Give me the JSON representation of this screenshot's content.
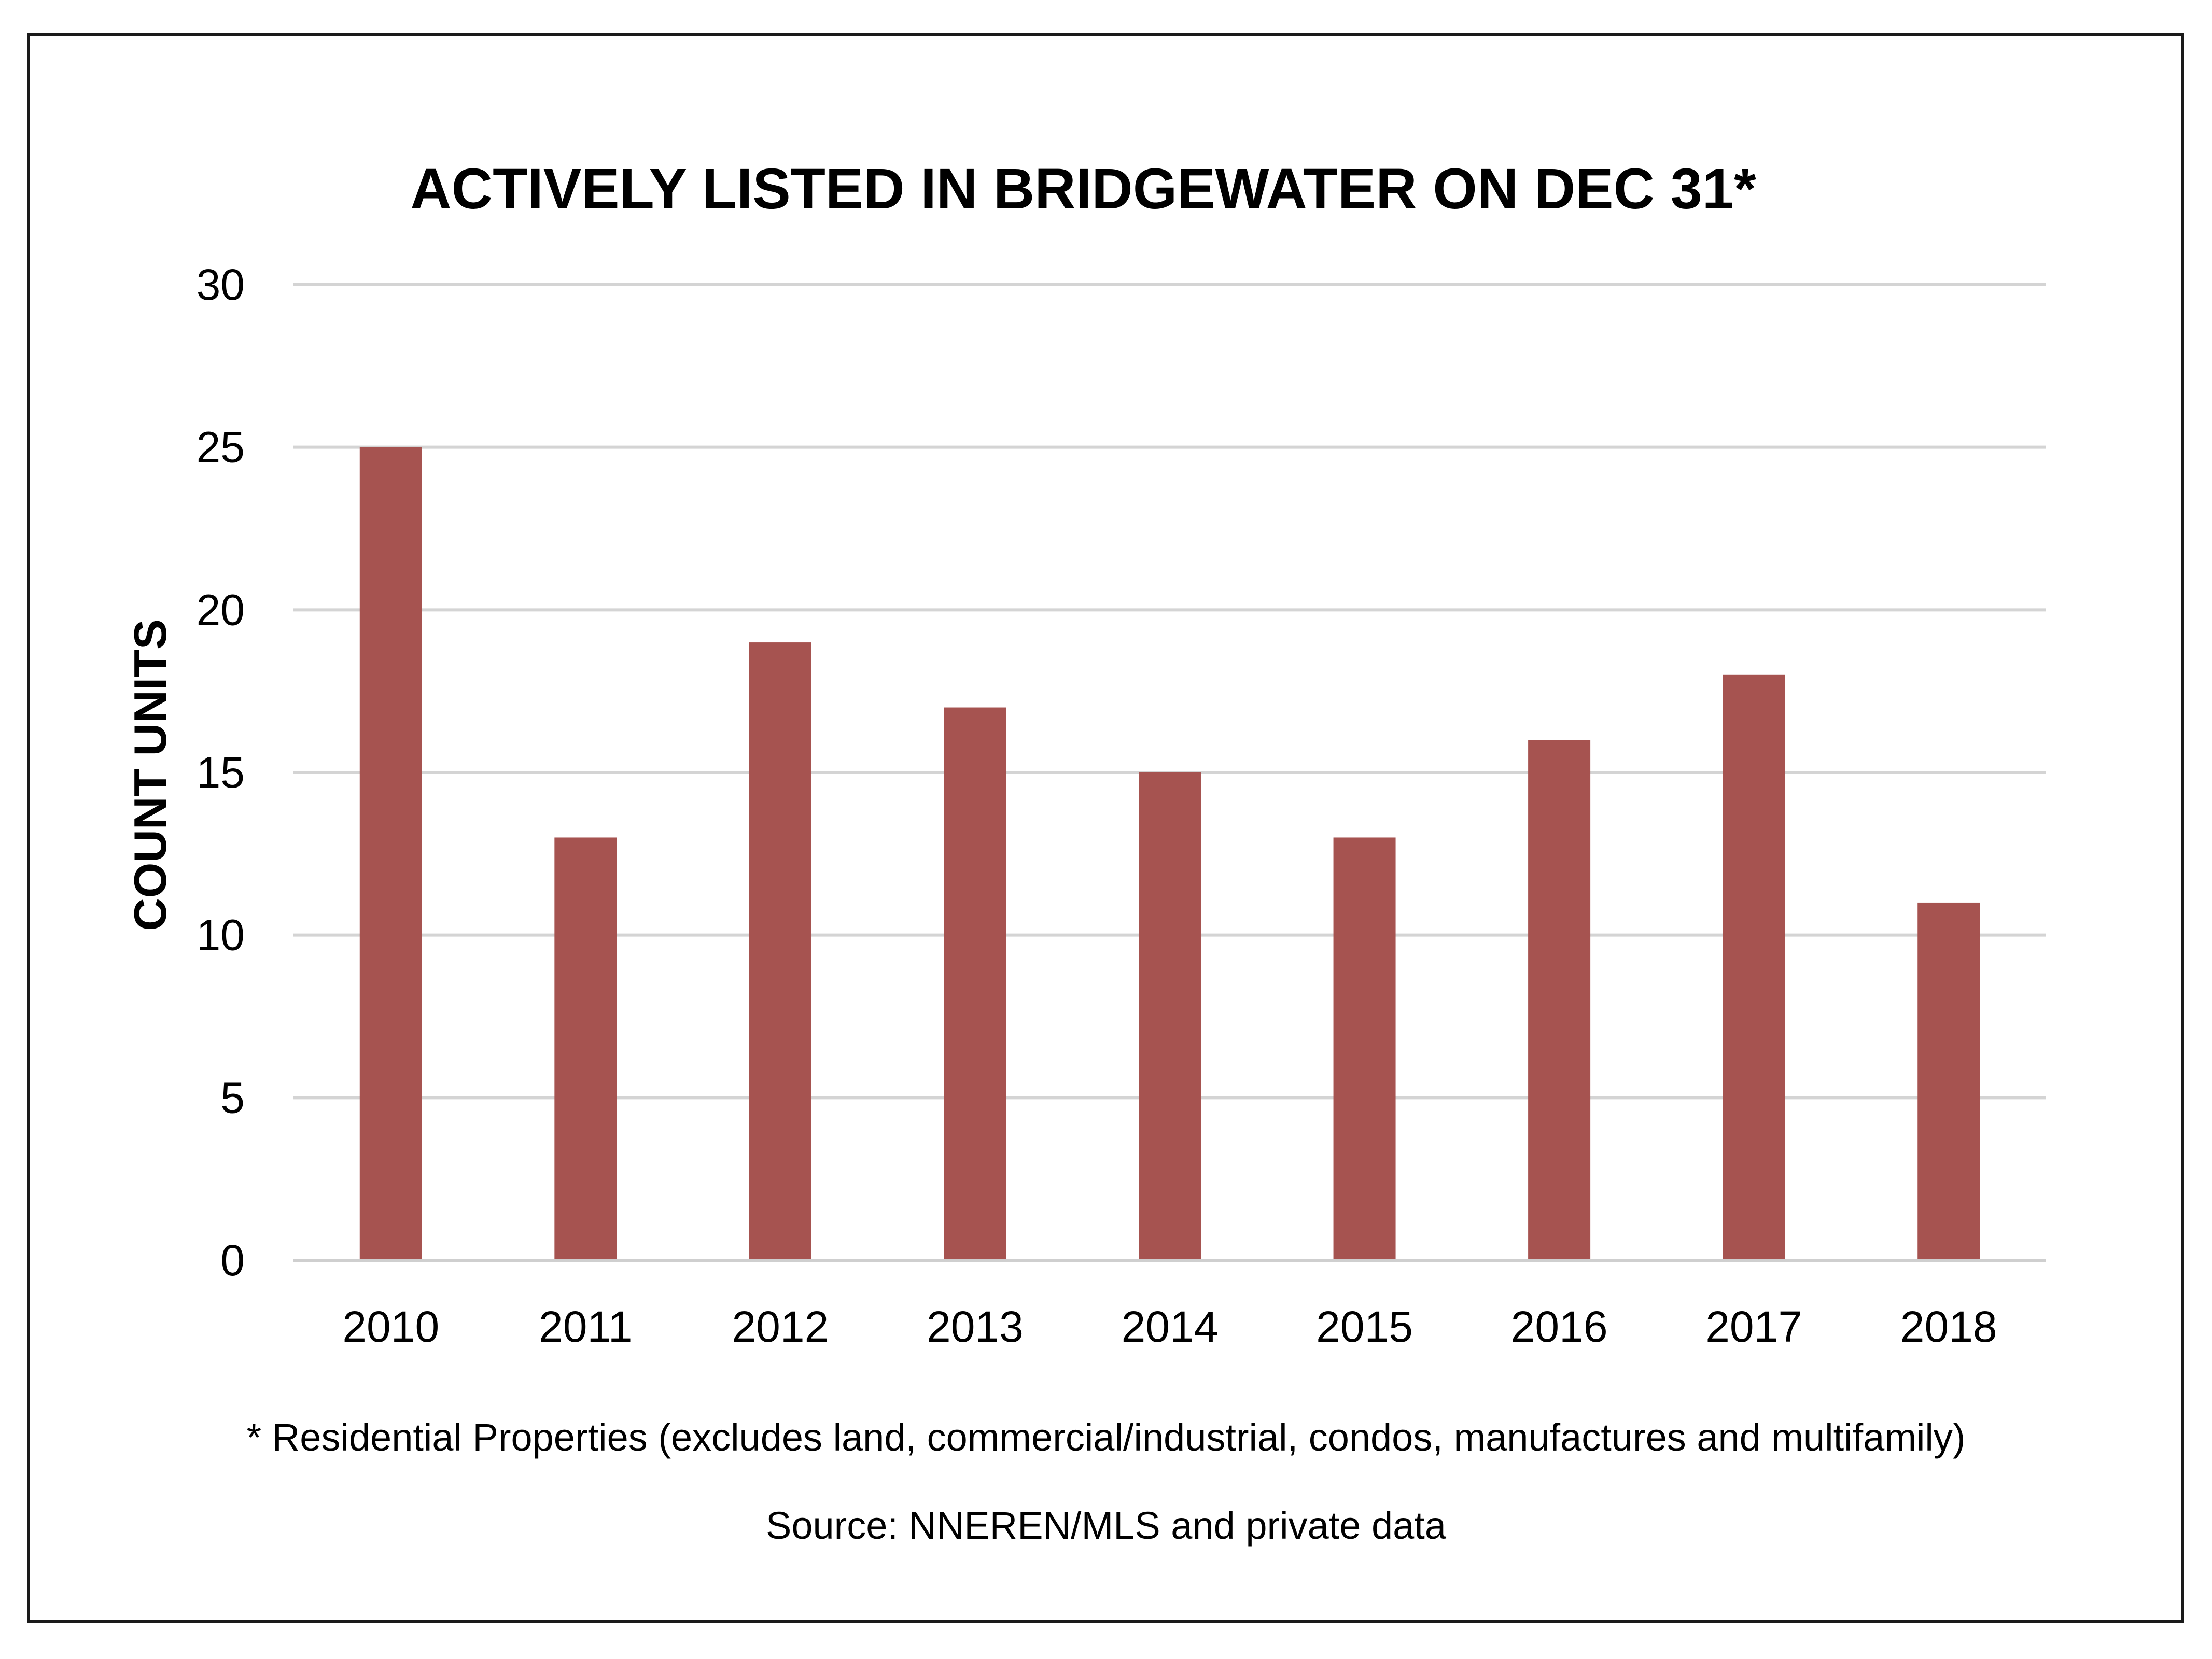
{
  "chart_data": {
    "type": "bar",
    "title": "ACTIVELY LISTED IN BRIDGEWATER ON DEC 31*",
    "xlabel": "",
    "ylabel": "COUNT UNITS",
    "categories": [
      "2010",
      "2011",
      "2012",
      "2013",
      "2014",
      "2015",
      "2016",
      "2017",
      "2018"
    ],
    "values": [
      25,
      13,
      19,
      17,
      15,
      13,
      16,
      18,
      11
    ],
    "ylim": [
      0,
      30
    ],
    "yticks": [
      0,
      5,
      10,
      15,
      20,
      25,
      30
    ],
    "grid": true,
    "bar_color": "#a65350",
    "grid_color": "#d4d4d4"
  },
  "footnote": "* Residential Properties (excludes land, commercial/industrial, condos, manufactures and multifamily)",
  "source": "Source: NNEREN/MLS and private data"
}
